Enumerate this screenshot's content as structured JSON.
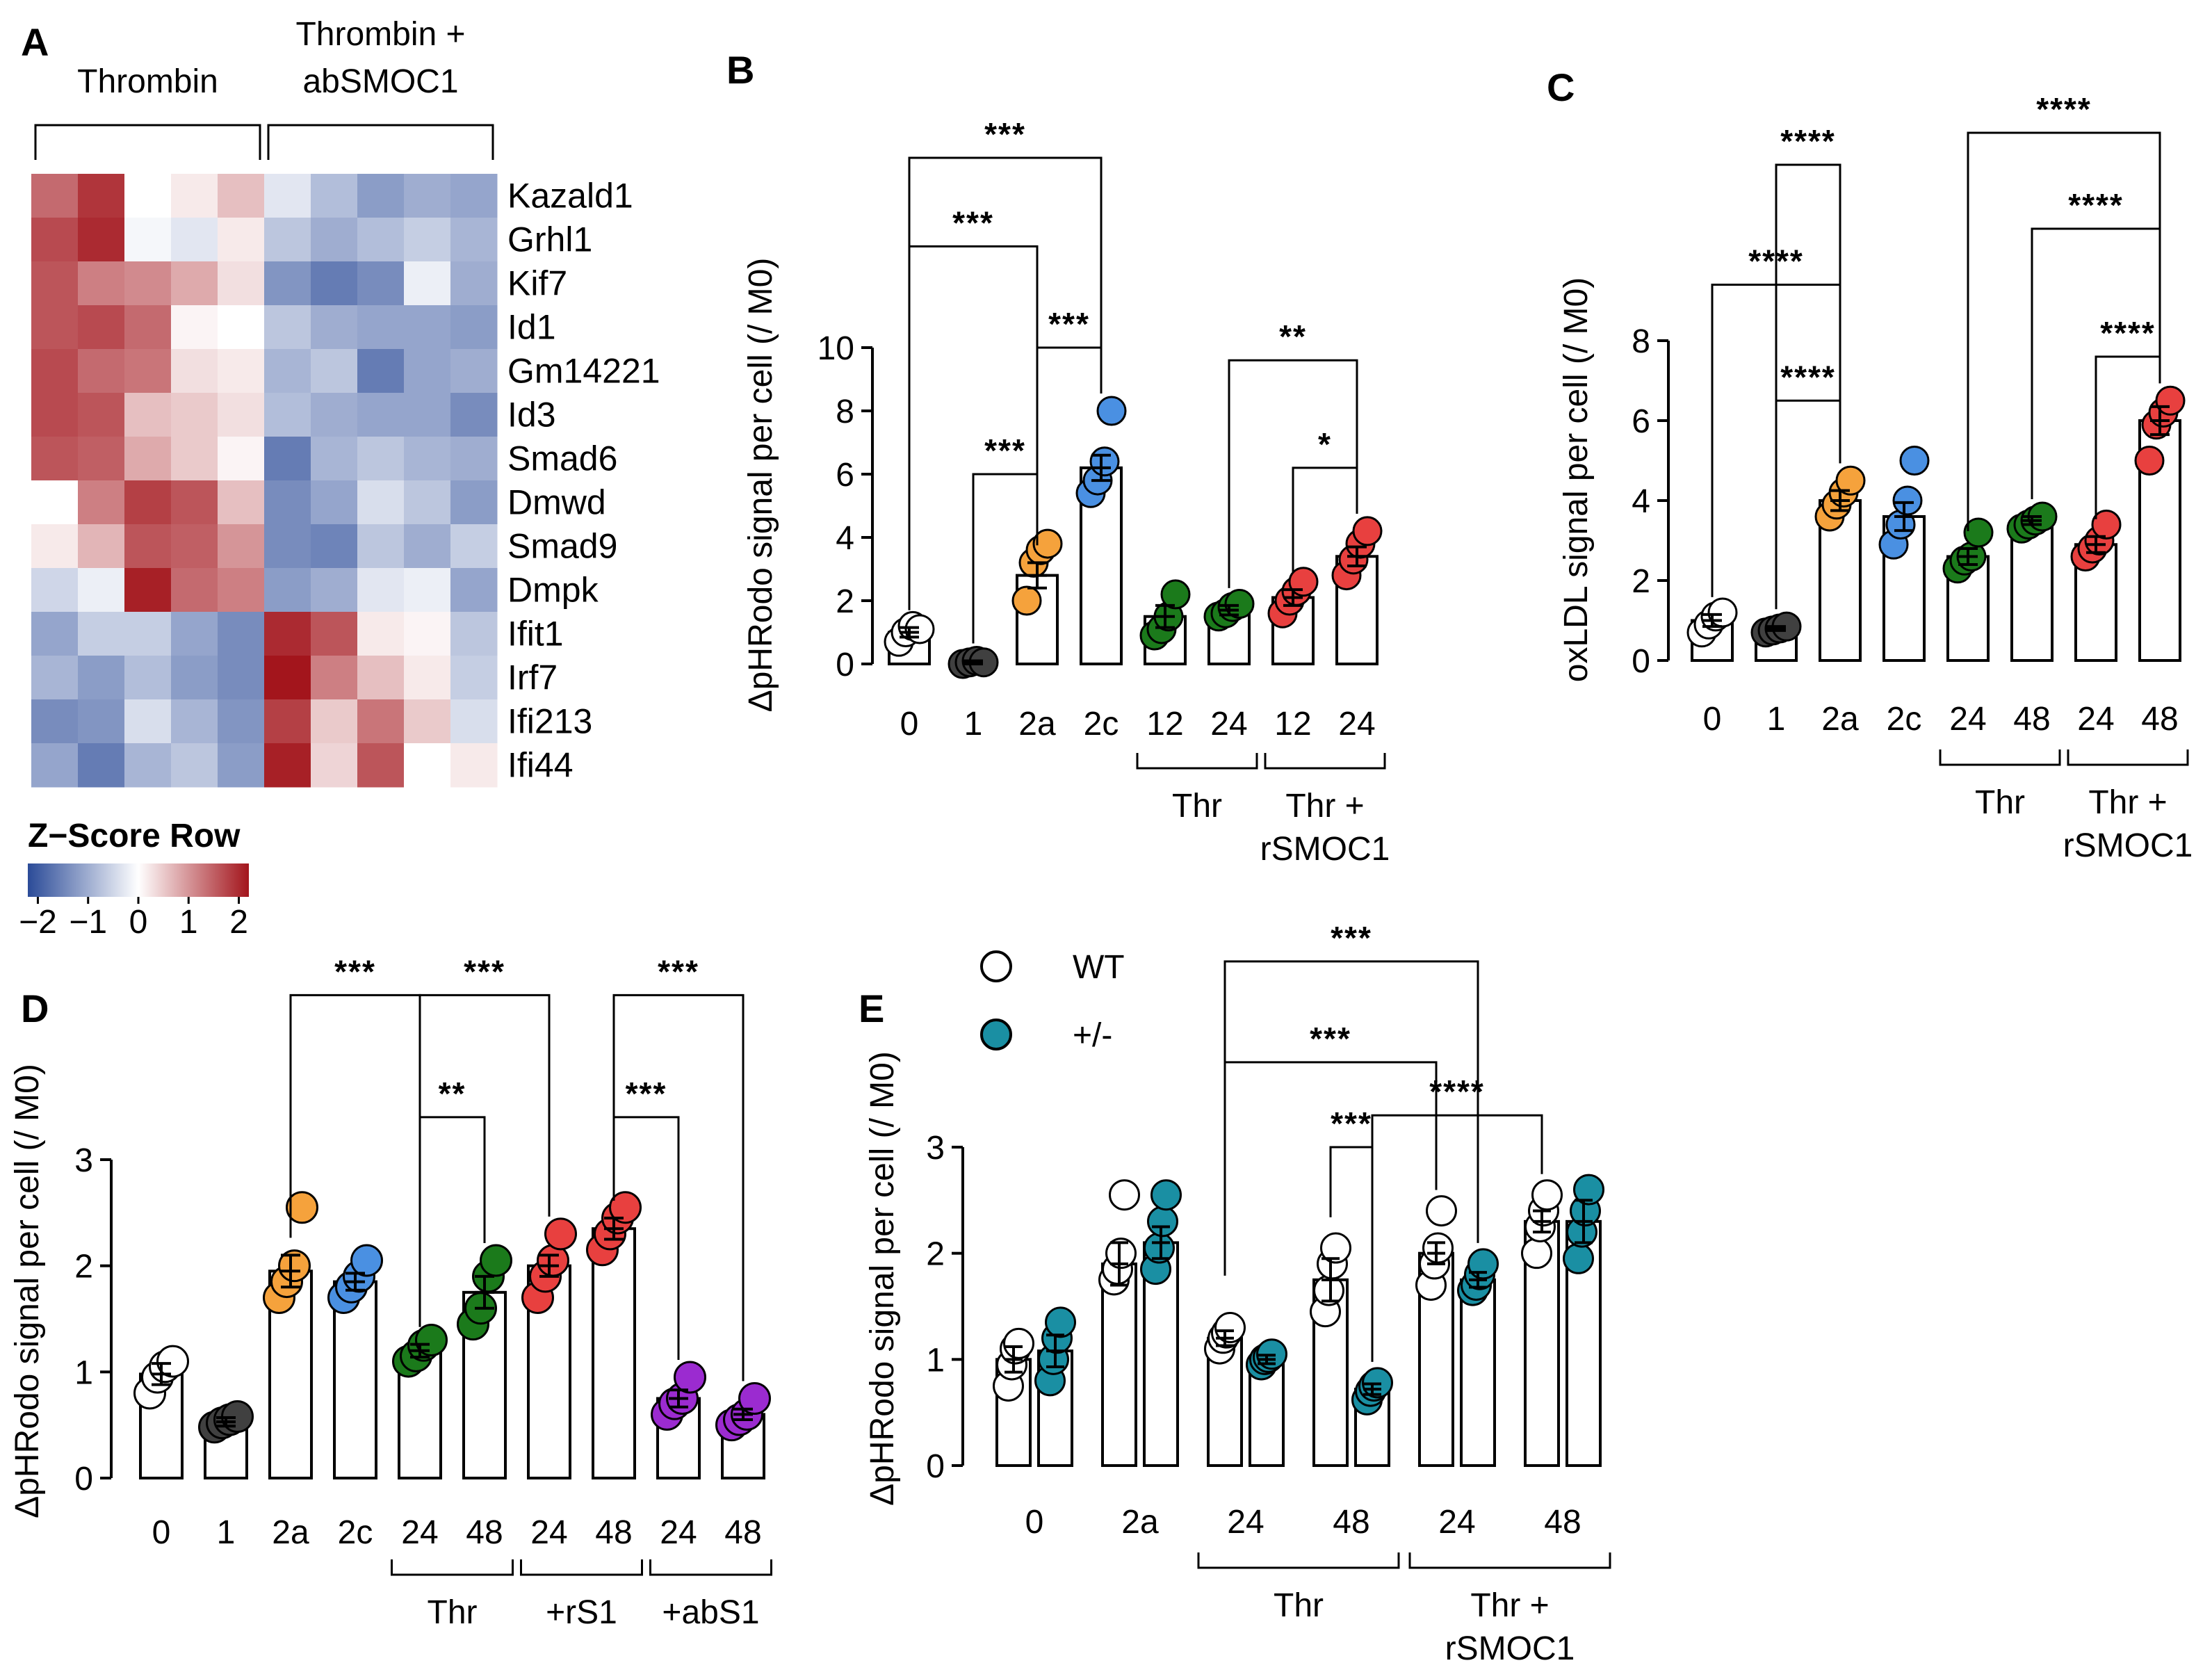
{
  "figure": {
    "panels": {
      "A": "A",
      "B": "B",
      "C": "C",
      "D": "D",
      "E": "E"
    }
  },
  "chart_data": [
    {
      "panel": "A",
      "type": "heatmap",
      "column_groups": [
        "Thrombin",
        "Thrombin + abSMOC1"
      ],
      "column_group_lines": [
        [
          "Thrombin"
        ],
        [
          "Thrombin +",
          "abSMOC1"
        ]
      ],
      "rows": [
        "Kazald1",
        "Grhl1",
        "Kif7",
        "Id1",
        "Gm14221",
        "Id3",
        "Smad6",
        "Dmwd",
        "Smad9",
        "Dmpk",
        "Ifit1",
        "Irf7",
        "Ifi213",
        "Ifi44"
      ],
      "values": [
        [
          1.4,
          1.9,
          0.0,
          0.2,
          0.6,
          -0.3,
          -0.8,
          -1.2,
          -1.0,
          -1.1
        ],
        [
          1.7,
          2.0,
          -0.1,
          -0.3,
          0.2,
          -0.7,
          -1.0,
          -0.8,
          -0.6,
          -0.9
        ],
        [
          1.6,
          1.2,
          1.1,
          0.8,
          0.3,
          -1.3,
          -1.6,
          -1.4,
          -0.2,
          -1.0
        ],
        [
          1.6,
          1.7,
          1.4,
          0.1,
          0.0,
          -0.7,
          -1.0,
          -1.1,
          -1.1,
          -1.2
        ],
        [
          1.7,
          1.4,
          1.3,
          0.3,
          0.2,
          -0.9,
          -0.7,
          -1.6,
          -1.1,
          -1.0
        ],
        [
          1.7,
          1.6,
          0.6,
          0.5,
          0.3,
          -0.8,
          -1.0,
          -1.1,
          -1.1,
          -1.4
        ],
        [
          1.6,
          1.5,
          0.8,
          0.5,
          0.1,
          -1.6,
          -0.9,
          -0.7,
          -0.9,
          -1.0
        ],
        [
          0.0,
          1.2,
          1.8,
          1.6,
          0.6,
          -1.4,
          -1.1,
          -0.4,
          -0.7,
          -1.2
        ],
        [
          0.2,
          0.7,
          1.6,
          1.5,
          1.0,
          -1.4,
          -1.5,
          -0.7,
          -1.0,
          -0.6
        ],
        [
          -0.5,
          -0.2,
          2.1,
          1.4,
          1.2,
          -1.2,
          -1.0,
          -0.3,
          -0.2,
          -1.1
        ],
        [
          -1.1,
          -0.6,
          -0.6,
          -1.1,
          -1.4,
          2.0,
          1.6,
          0.2,
          0.1,
          -0.7
        ],
        [
          -0.9,
          -1.2,
          -0.8,
          -1.2,
          -1.4,
          2.3,
          1.2,
          0.6,
          0.2,
          -0.6
        ],
        [
          -1.4,
          -1.3,
          -0.4,
          -0.9,
          -1.3,
          1.8,
          0.5,
          1.3,
          0.5,
          -0.4
        ],
        [
          -1.1,
          -1.6,
          -0.9,
          -0.7,
          -1.2,
          2.1,
          0.4,
          1.6,
          0.0,
          0.2
        ]
      ],
      "colorbar": {
        "title": "Z−Score Row",
        "ticks": [
          "−2",
          "−1",
          "0",
          "1",
          "2"
        ],
        "range": [
          -2.2,
          2.2
        ]
      },
      "colors": {
        "low": "#2b4b98",
        "mid": "#ffffff",
        "high": "#a3151c"
      }
    },
    {
      "panel": "B",
      "type": "bar",
      "ylabel": "ΔpHRodo signal per cell (/ M0)",
      "ylim": [
        0,
        10
      ],
      "yticks": [
        "0",
        "2",
        "4",
        "6",
        "8",
        "10"
      ],
      "categories": [
        "0",
        "1",
        "2a",
        "2c",
        "12",
        "24",
        "12",
        "24"
      ],
      "values": [
        1.0,
        0.05,
        2.8,
        6.2,
        1.5,
        1.7,
        2.1,
        3.4
      ],
      "errors": [
        0.15,
        0.05,
        0.4,
        0.4,
        0.35,
        0.15,
        0.25,
        0.3
      ],
      "points": [
        [
          0.7,
          1.0,
          1.2,
          1.1
        ],
        [
          0.0,
          0.05,
          0.1,
          0.05
        ],
        [
          2.0,
          3.2,
          3.6,
          3.8
        ],
        [
          5.4,
          5.8,
          6.4,
          8.0
        ],
        [
          0.9,
          1.1,
          1.5,
          2.2
        ],
        [
          1.5,
          1.6,
          1.8,
          1.9
        ],
        [
          1.6,
          2.0,
          2.3,
          2.6
        ],
        [
          2.8,
          3.3,
          3.8,
          4.2
        ]
      ],
      "colors": [
        "#ffffff",
        "#404040",
        "#f5a23c",
        "#4a90e2",
        "#1b7a1b",
        "#1b7a1b",
        "#e8403f",
        "#e8403f"
      ],
      "groups": [
        {
          "label": [
            "Thr"
          ],
          "from": 4,
          "to": 5
        },
        {
          "label": [
            "Thr +",
            "rSMOC1"
          ],
          "from": 6,
          "to": 7
        }
      ],
      "significance": [
        {
          "from": 0,
          "to": 3,
          "label": "***",
          "y": 16.0
        },
        {
          "from": 0,
          "to": 2,
          "label": "***",
          "y": 13.2
        },
        {
          "from": 2,
          "to": 3,
          "label": "***",
          "y": 10.0
        },
        {
          "from": 1,
          "to": 2,
          "label": "***",
          "y": 6.0
        },
        {
          "from": 5,
          "to": 7,
          "label": "**",
          "y": 9.6
        },
        {
          "from": 6,
          "to": 7,
          "label": "*",
          "y": 6.2
        }
      ]
    },
    {
      "panel": "C",
      "type": "bar",
      "ylabel": "oxLDL signal per cell (/ M0)",
      "ylim": [
        0,
        8
      ],
      "yticks": [
        "0",
        "2",
        "4",
        "6",
        "8"
      ],
      "categories": [
        "0",
        "1",
        "2a",
        "2c",
        "24",
        "48",
        "24",
        "48"
      ],
      "values": [
        1.0,
        0.8,
        4.0,
        3.6,
        2.6,
        3.5,
        2.9,
        6.0
      ],
      "errors": [
        0.15,
        0.05,
        0.25,
        0.35,
        0.2,
        0.1,
        0.2,
        0.35
      ],
      "points": [
        [
          0.7,
          0.9,
          1.1,
          1.2
        ],
        [
          0.7,
          0.75,
          0.8,
          0.85
        ],
        [
          3.6,
          3.9,
          4.2,
          4.5
        ],
        [
          2.9,
          3.4,
          4.0,
          5.0
        ],
        [
          2.3,
          2.5,
          2.6,
          3.2
        ],
        [
          3.3,
          3.4,
          3.5,
          3.6
        ],
        [
          2.6,
          2.8,
          3.0,
          3.4
        ],
        [
          5.0,
          5.9,
          6.2,
          6.5
        ]
      ],
      "colors": [
        "#ffffff",
        "#404040",
        "#f5a23c",
        "#4a90e2",
        "#1b7a1b",
        "#1b7a1b",
        "#e8403f",
        "#e8403f"
      ],
      "groups": [
        {
          "label": [
            "Thr"
          ],
          "from": 4,
          "to": 5
        },
        {
          "label": [
            "Thr +",
            "rSMOC1"
          ],
          "from": 6,
          "to": 7
        }
      ],
      "significance": [
        {
          "from": 1,
          "to": 2,
          "label": "****",
          "y": 12.4
        },
        {
          "from": 0,
          "to": 2,
          "label": "****",
          "y": 9.4
        },
        {
          "from": 1,
          "to": 2,
          "label": "****",
          "y": 6.5
        },
        {
          "from": 4,
          "to": 7,
          "label": "****",
          "y": 13.2
        },
        {
          "from": 5,
          "to": 7,
          "label": "****",
          "y": 10.8
        },
        {
          "from": 6,
          "to": 7,
          "label": "****",
          "y": 7.6
        }
      ]
    },
    {
      "panel": "D",
      "type": "bar",
      "ylabel": "ΔpHRodo signal per cell (/ M0)",
      "ylim": [
        0,
        3
      ],
      "yticks": [
        "0",
        "1",
        "2",
        "3"
      ],
      "categories": [
        "0",
        "1",
        "2a",
        "2c",
        "24",
        "48",
        "24",
        "48",
        "24",
        "48"
      ],
      "values": [
        0.98,
        0.53,
        1.95,
        1.85,
        1.2,
        1.75,
        2.0,
        2.35,
        0.75,
        0.6
      ],
      "errors": [
        0.1,
        0.04,
        0.15,
        0.08,
        0.06,
        0.15,
        0.1,
        0.1,
        0.08,
        0.05
      ],
      "points": [
        [
          0.8,
          0.95,
          1.05,
          1.1
        ],
        [
          0.48,
          0.52,
          0.55,
          0.58
        ],
        [
          1.7,
          1.85,
          2.0,
          2.55
        ],
        [
          1.7,
          1.8,
          1.9,
          2.05
        ],
        [
          1.1,
          1.15,
          1.25,
          1.3
        ],
        [
          1.45,
          1.6,
          1.9,
          2.05
        ],
        [
          1.7,
          1.9,
          2.05,
          2.3
        ],
        [
          2.15,
          2.3,
          2.45,
          2.55
        ],
        [
          0.6,
          0.7,
          0.75,
          0.95
        ],
        [
          0.5,
          0.55,
          0.6,
          0.75
        ]
      ],
      "colors": [
        "#ffffff",
        "#404040",
        "#f5a23c",
        "#4a90e2",
        "#1b7a1b",
        "#1b7a1b",
        "#e8403f",
        "#e8403f",
        "#9b2bd0",
        "#9b2bd0"
      ],
      "groups": [
        {
          "label": [
            "Thr"
          ],
          "from": 4,
          "to": 5
        },
        {
          "label": [
            "+rS1"
          ],
          "from": 6,
          "to": 7
        },
        {
          "label": [
            "+abS1"
          ],
          "from": 8,
          "to": 9
        }
      ],
      "significance": [
        {
          "from": 2,
          "to": 4,
          "label": "***",
          "y": 4.55
        },
        {
          "from": 4,
          "to": 6,
          "label": "***",
          "y": 4.55
        },
        {
          "from": 7,
          "to": 9,
          "label": "***",
          "y": 4.55
        },
        {
          "from": 4,
          "to": 5,
          "label": "**",
          "y": 3.4
        },
        {
          "from": 7,
          "to": 8,
          "label": "***",
          "y": 3.4
        }
      ]
    },
    {
      "panel": "E",
      "type": "bar",
      "ylabel": "ΔpHRodo signal per cell (/ M0)",
      "ylim": [
        0,
        3
      ],
      "yticks": [
        "0",
        "1",
        "2",
        "3"
      ],
      "categories": [
        "0",
        "2a",
        "24",
        "48",
        "24",
        "48"
      ],
      "legend": [
        {
          "name": "WT",
          "color": "#ffffff"
        },
        {
          "name": "+/-",
          "color": "#1a8fa3"
        }
      ],
      "series": [
        {
          "name": "WT",
          "values": [
            1.0,
            1.9,
            1.2,
            1.75,
            2.0,
            2.3
          ],
          "errors": [
            0.12,
            0.2,
            0.07,
            0.2,
            0.1,
            0.1
          ],
          "points": [
            [
              0.75,
              0.95,
              1.1,
              1.15
            ],
            [
              1.75,
              1.85,
              2.0,
              2.55
            ],
            [
              1.1,
              1.2,
              1.25,
              1.3
            ],
            [
              1.45,
              1.65,
              1.9,
              2.05
            ],
            [
              1.7,
              1.9,
              2.05,
              2.4
            ],
            [
              2.0,
              2.25,
              2.4,
              2.55
            ]
          ]
        },
        {
          "name": "+/-",
          "values": [
            1.08,
            2.1,
            1.0,
            0.72,
            1.75,
            2.3
          ],
          "errors": [
            0.15,
            0.15,
            0.04,
            0.05,
            0.07,
            0.2
          ],
          "points": [
            [
              0.8,
              1.0,
              1.2,
              1.35
            ],
            [
              1.85,
              2.05,
              2.3,
              2.55
            ],
            [
              0.95,
              1.0,
              1.02,
              1.05
            ],
            [
              0.62,
              0.7,
              0.75,
              0.78
            ],
            [
              1.65,
              1.7,
              1.8,
              1.9
            ],
            [
              1.95,
              2.2,
              2.4,
              2.6
            ]
          ]
        }
      ],
      "groups": [
        {
          "label": [
            "Thr"
          ],
          "from": 2,
          "to": 3
        },
        {
          "label": [
            "Thr +",
            "rSMOC1"
          ],
          "from": 4,
          "to": 5
        }
      ],
      "significance": [
        {
          "a": [
            2,
            0
          ],
          "b": [
            4,
            1
          ],
          "label": "***",
          "y": 4.75
        },
        {
          "a": [
            2,
            0
          ],
          "b": [
            4,
            0
          ],
          "label": "***",
          "y": 3.8
        },
        {
          "a": [
            3,
            0
          ],
          "b": [
            3,
            1
          ],
          "label": "***",
          "y": 3.0
        },
        {
          "a": [
            3,
            1
          ],
          "b": [
            5,
            0
          ],
          "label": "****",
          "y": 3.3
        }
      ]
    }
  ]
}
